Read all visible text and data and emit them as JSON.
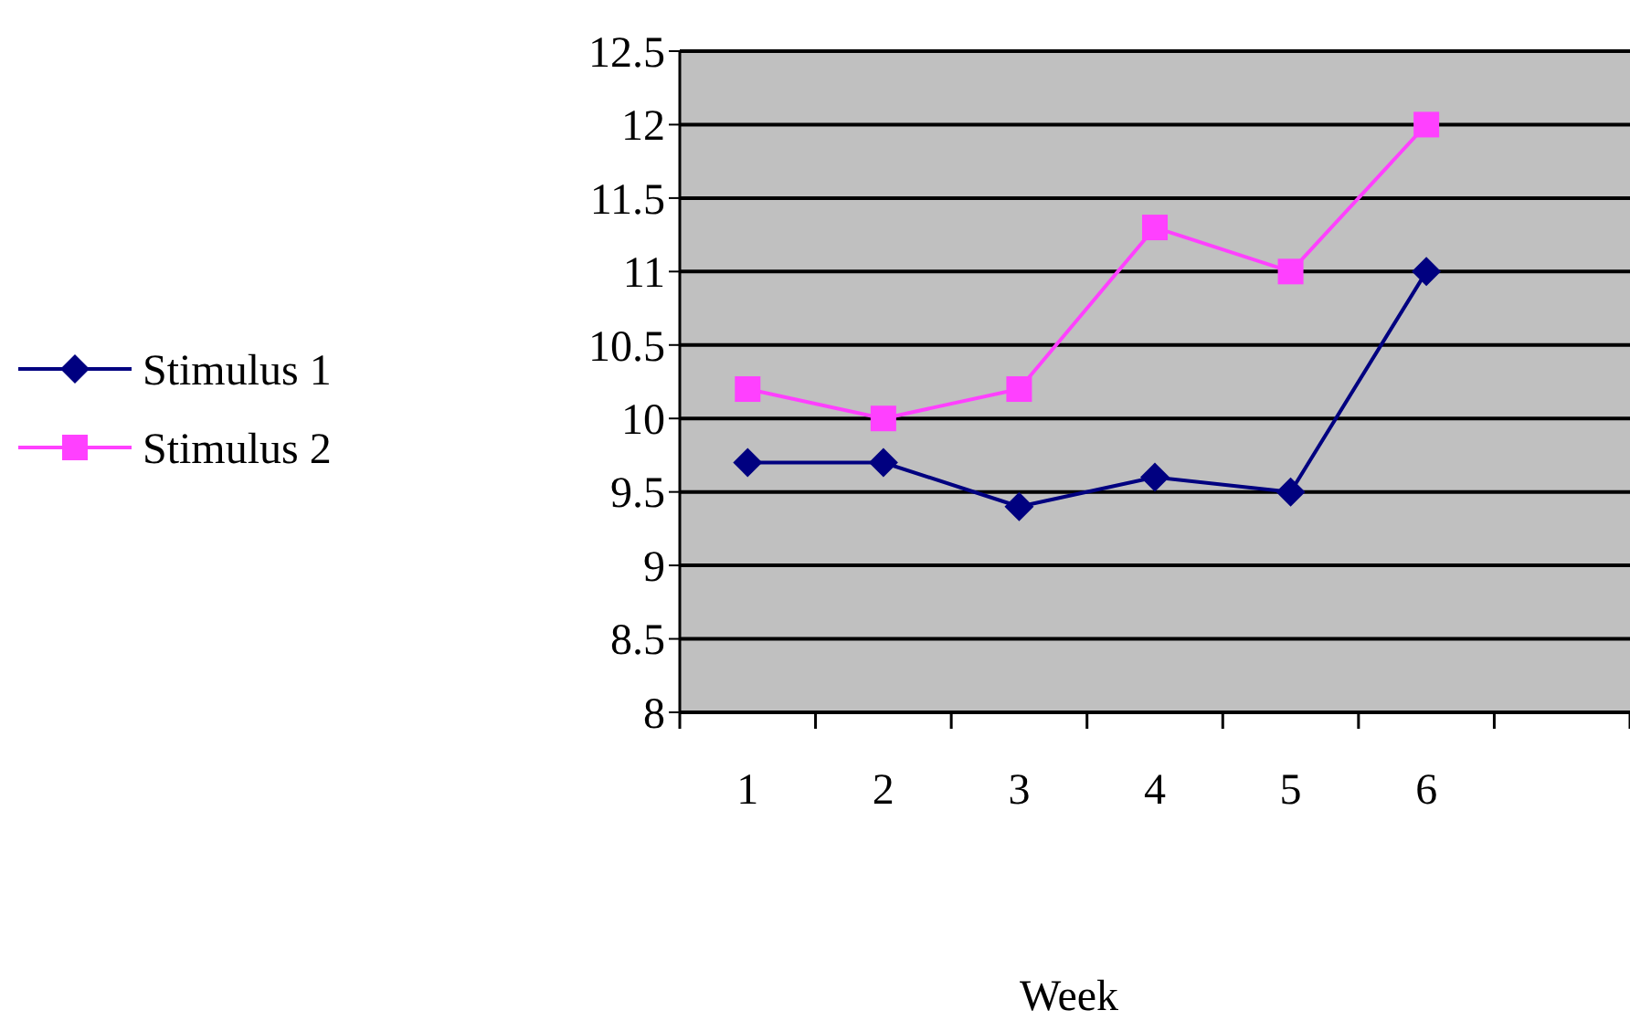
{
  "chart_data": {
    "type": "line",
    "xlabel": "Week",
    "categories": [
      "1",
      "2",
      "3",
      "4",
      "5",
      "6",
      null
    ],
    "series": [
      {
        "name": "Stimulus 1",
        "color": "#000080",
        "marker": "diamond",
        "values": [
          9.7,
          9.7,
          9.4,
          9.6,
          9.5,
          11,
          null
        ]
      },
      {
        "name": "Stimulus 2",
        "color": "#ff40ff",
        "marker": "square",
        "values": [
          10.2,
          10.0,
          10.2,
          11.3,
          11.0,
          12.0,
          null
        ]
      }
    ],
    "ylim": [
      8,
      12.5
    ],
    "yticks": [
      8,
      8.5,
      9,
      9.5,
      10,
      10.5,
      11,
      11.5,
      12,
      12.5
    ],
    "grid": "y",
    "legend": "left"
  }
}
